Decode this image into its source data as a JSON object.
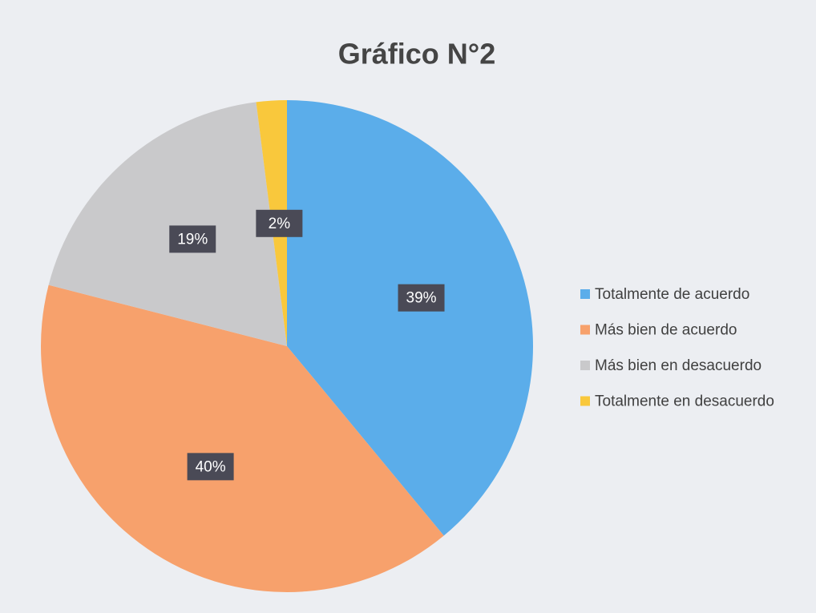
{
  "chart_data": {
    "type": "pie",
    "title": "Gráfico N°2",
    "categories": [
      "Totalmente de acuerdo",
      "Más bien de acuerdo",
      "Más bien en desacuerdo",
      "Totalmente en desacuerdo"
    ],
    "values": [
      39,
      40,
      19,
      2
    ],
    "value_labels": [
      "39%",
      "40%",
      "19%",
      "2%"
    ],
    "colors": [
      "#5badea",
      "#f7a16c",
      "#c9c9cb",
      "#f9c83c"
    ],
    "legend": "right"
  }
}
